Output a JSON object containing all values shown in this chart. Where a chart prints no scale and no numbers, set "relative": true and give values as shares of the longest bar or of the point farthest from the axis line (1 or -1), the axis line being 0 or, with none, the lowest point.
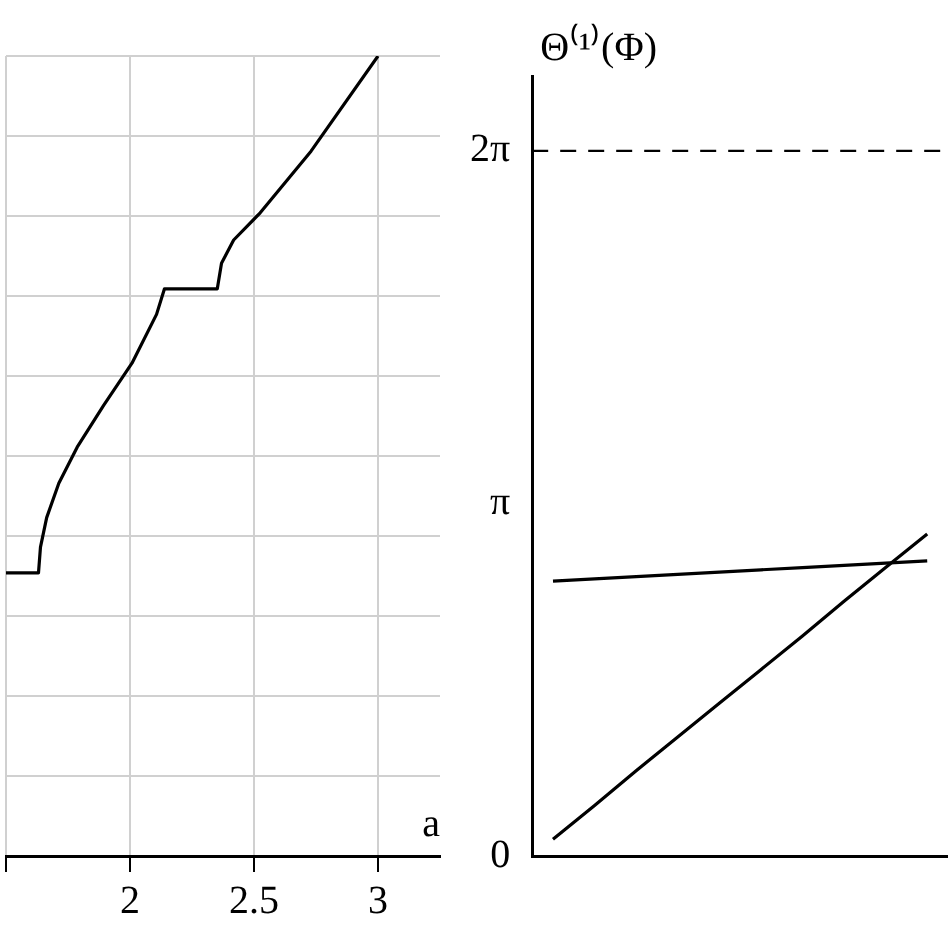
{
  "chart_data": [
    {
      "type": "line",
      "relative": true,
      "xlabel": "a",
      "xlim": [
        1.5,
        3.25
      ],
      "xticks": [
        {
          "value": 1.5,
          "label": null
        },
        2,
        2.5,
        3
      ],
      "grid": true,
      "legend": false,
      "marker": "none",
      "line_style": "solid",
      "series": [
        {
          "color": "#000000",
          "x": [
            1.5,
            1.631,
            1.639,
            1.664,
            1.713,
            1.787,
            1.893,
            2.008,
            2.107,
            2.139,
            2.352,
            2.369,
            2.418,
            2.525,
            2.73,
            3.0
          ],
          "values": [
            0.354,
            0.354,
            0.386,
            0.423,
            0.466,
            0.511,
            0.563,
            0.616,
            0.677,
            0.709,
            0.709,
            0.741,
            0.77,
            0.804,
            0.881,
            1.0
          ]
        }
      ]
    },
    {
      "type": "line",
      "ylabel": "Θ⁽¹⁾(Φ)",
      "categories": [
        null,
        null,
        null,
        null,
        null,
        null,
        null,
        null,
        null,
        null
      ],
      "ylim": [
        0,
        6.95
      ],
      "yticks": [
        {
          "value": 0,
          "label": "0"
        },
        {
          "value": 3.1416,
          "label": "π"
        },
        {
          "value": 6.2832,
          "label": "2π"
        }
      ],
      "grid": false,
      "legend": false,
      "marker": "none",
      "line_style": "solid",
      "ref_lines": [
        {
          "axis": "y",
          "value": 6.2832,
          "line_style": "dashed",
          "color": "#000000"
        }
      ],
      "series": [
        {
          "color": "#000000",
          "values": [
            0.15,
            0.45,
            0.76,
            1.06,
            1.36,
            1.66,
            1.96,
            2.27,
            2.57,
            2.87
          ]
        },
        {
          "color": "#000000",
          "values": [
            2.45,
            2.47,
            2.49,
            2.51,
            2.53,
            2.55,
            2.57,
            2.59,
            2.61,
            2.63
          ]
        }
      ]
    }
  ]
}
